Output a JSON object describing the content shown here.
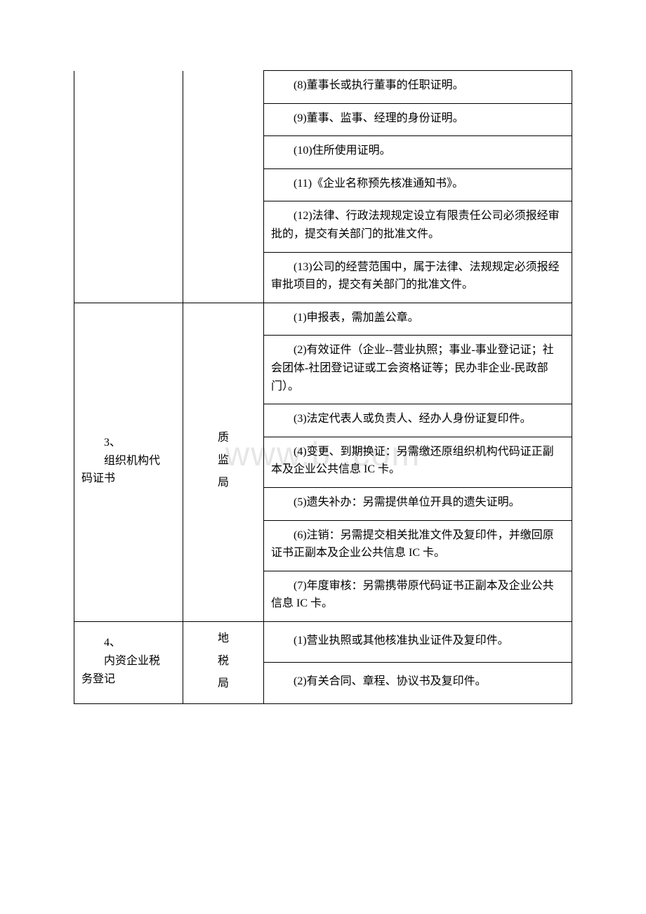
{
  "watermark": "www.b        .com",
  "section1": {
    "items": {
      "r8": "(8)董事长或执行董事的任职证明。",
      "r9": "(9)董事、监事、经理的身份证明。",
      "r10": "(10)住所使用证明。",
      "r11": "(11)《企业名称预先核准通知书》。",
      "r12": "(12)法律、行政法规规定设立有限责任公司必须报经审批的，提交有关部门的批准文件。",
      "r13": "(13)公司的经营范围中，属于法律、法规规定必须报经审批项目的，提交有关部门的批准文件。"
    }
  },
  "section2": {
    "num": "3、",
    "title_line1": "组织机构代",
    "title_line2": "码证书",
    "dept": {
      "c1": "质",
      "c2": "监",
      "c3": "局"
    },
    "items": {
      "r1": "(1)申报表，需加盖公章。",
      "r2": "(2)有效证件（企业--营业执照；事业-事业登记证；社会团体-社团登记证或工会资格证等；民办非企业-民政部门）。",
      "r3": "(3)法定代表人或负责人、经办人身份证复印件。",
      "r4": "(4)变更、到期换证：另需缴还原组织机构代码证正副本及企业公共信息 IC 卡。",
      "r5": "(5)遗失补办：另需提供单位开具的遗失证明。",
      "r6": "(6)注销：另需提交相关批准文件及复印件，并缴回原证书正副本及企业公共信息 IC 卡。",
      "r7": "(7)年度审核：另需携带原代码证书正副本及企业公共信息 IC 卡。"
    }
  },
  "section3": {
    "num": "4、",
    "title_line1": "内资企业税",
    "title_line2": "务登记",
    "dept": {
      "c1": "地",
      "c2": "税",
      "c3": "局"
    },
    "items": {
      "r1": "(1)营业执照或其他核准执业证件及复印件。",
      "r2": "(2)有关合同、章程、协议书及复印件。"
    }
  }
}
